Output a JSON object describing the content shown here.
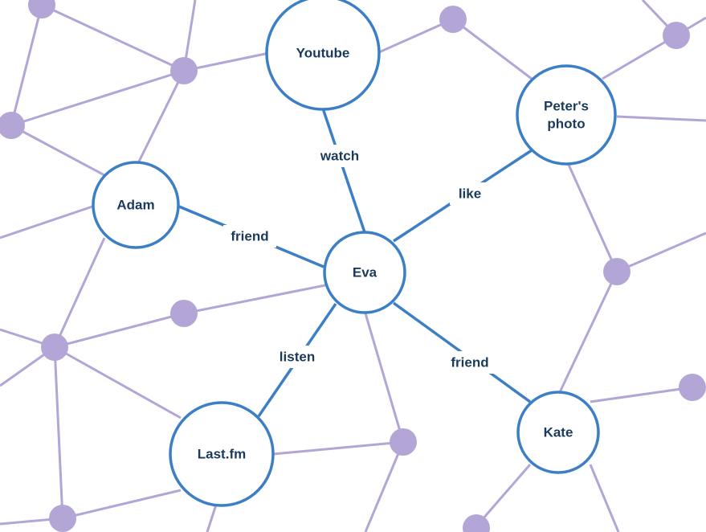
{
  "colors": {
    "primary_edge": "#3d7fc4",
    "background_network": "#b3a6d6",
    "label_text": "#1a3a5c"
  },
  "nodes": {
    "eva": {
      "label": "Eva"
    },
    "youtube": {
      "label": "Youtube"
    },
    "peters_photo": {
      "label_line1": "Peter's",
      "label_line2": "photo"
    },
    "adam": {
      "label": "Adam"
    },
    "lastfm": {
      "label": "Last.fm"
    },
    "kate": {
      "label": "Kate"
    }
  },
  "relations": {
    "eva_youtube": "watch",
    "eva_peters_photo": "like",
    "eva_adam": "friend",
    "eva_lastfm": "listen",
    "eva_kate": "friend"
  }
}
